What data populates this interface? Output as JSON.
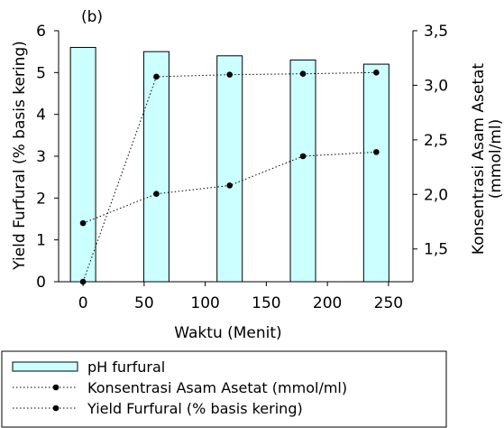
{
  "chart_data": {
    "type": "bar",
    "panel_label": "(b)",
    "x_ticks": [
      0,
      50,
      100,
      150,
      200,
      250
    ],
    "xlim": [
      -20,
      270
    ],
    "xlabel": "Waktu (Menit)",
    "ylabel_left": "Yield Furfural (% basis kering)",
    "ylim_left": [
      0,
      6
    ],
    "y_ticks_left": [
      "0",
      "1",
      "2",
      "3",
      "4",
      "5",
      "6"
    ],
    "ylabel_right_line1": "Konsentrasi Asam Asetat",
    "ylabel_right_line2": "(mmol/ml)",
    "ylim_right": [
      1.2,
      3.5
    ],
    "y_ticks_right": [
      {
        "value": 1.5,
        "label": "1,5"
      },
      {
        "value": 2.0,
        "label": "2,0"
      },
      {
        "value": 2.5,
        "label": "2,5"
      },
      {
        "value": 3.0,
        "label": "3,0"
      },
      {
        "value": 3.5,
        "label": "3,5"
      }
    ],
    "series": [
      {
        "name": "pH furfural",
        "kind": "bar",
        "axis": "left",
        "color": "#ccffff",
        "x": [
          0,
          60,
          120,
          180,
          240
        ],
        "values": [
          5.6,
          5.5,
          5.4,
          5.3,
          5.2
        ]
      },
      {
        "name": "Konsentrasi Asam Asetat (mmol/ml)",
        "kind": "line",
        "axis": "left",
        "color": "#000000",
        "x": [
          0,
          60,
          120,
          180,
          240
        ],
        "values": [
          1.4,
          2.1,
          2.3,
          3.0,
          3.1
        ]
      },
      {
        "name": "Yield Furfural (% basis kering)",
        "kind": "line",
        "axis": "left",
        "color": "#000000",
        "x": [
          0,
          60,
          120,
          180,
          240
        ],
        "values": [
          0.0,
          4.9,
          4.95,
          4.97,
          5.0
        ]
      }
    ],
    "legend": [
      {
        "label": "pH furfural",
        "kind": "bar"
      },
      {
        "label": "Konsentrasi Asam Asetat (mmol/ml)",
        "kind": "line"
      },
      {
        "label": "Yield Furfural (% basis kering)",
        "kind": "line"
      }
    ],
    "legend_placement": "bottom-left"
  }
}
